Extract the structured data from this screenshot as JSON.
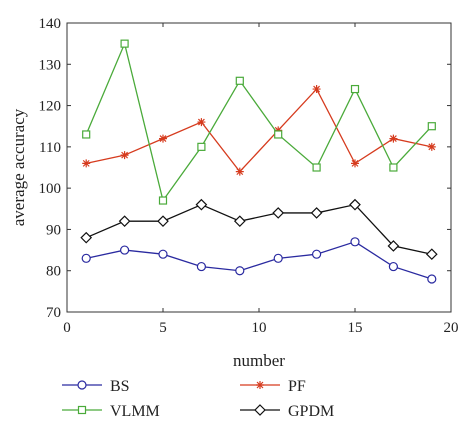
{
  "chart_data": {
    "type": "line",
    "title": "",
    "xlabel": "number",
    "ylabel": "average accuracy",
    "xlim": [
      0,
      20
    ],
    "ylim": [
      70,
      140
    ],
    "xticks": [
      0,
      5,
      10,
      15,
      20
    ],
    "yticks": [
      70,
      80,
      90,
      100,
      110,
      120,
      130,
      140
    ],
    "grid": false,
    "legend_position": "bottom",
    "x": [
      1,
      3,
      5,
      7,
      9,
      11,
      13,
      15,
      17,
      19
    ],
    "series": [
      {
        "name": "BS",
        "color": "#2a2aa0",
        "marker": "circle",
        "values": [
          83,
          85,
          84,
          81,
          80,
          83,
          84,
          87,
          81,
          78
        ]
      },
      {
        "name": "PF",
        "color": "#d63b1e",
        "marker": "star",
        "values": [
          106,
          108,
          112,
          116,
          104,
          114,
          124,
          106,
          112,
          110
        ]
      },
      {
        "name": "VLMM",
        "color": "#4aaa3a",
        "marker": "square",
        "values": [
          113,
          135,
          97,
          110,
          126,
          113,
          105,
          124,
          105,
          115
        ]
      },
      {
        "name": "GPDM",
        "color": "#111111",
        "marker": "diamond",
        "values": [
          88,
          92,
          92,
          96,
          92,
          94,
          94,
          96,
          86,
          84
        ]
      }
    ]
  }
}
